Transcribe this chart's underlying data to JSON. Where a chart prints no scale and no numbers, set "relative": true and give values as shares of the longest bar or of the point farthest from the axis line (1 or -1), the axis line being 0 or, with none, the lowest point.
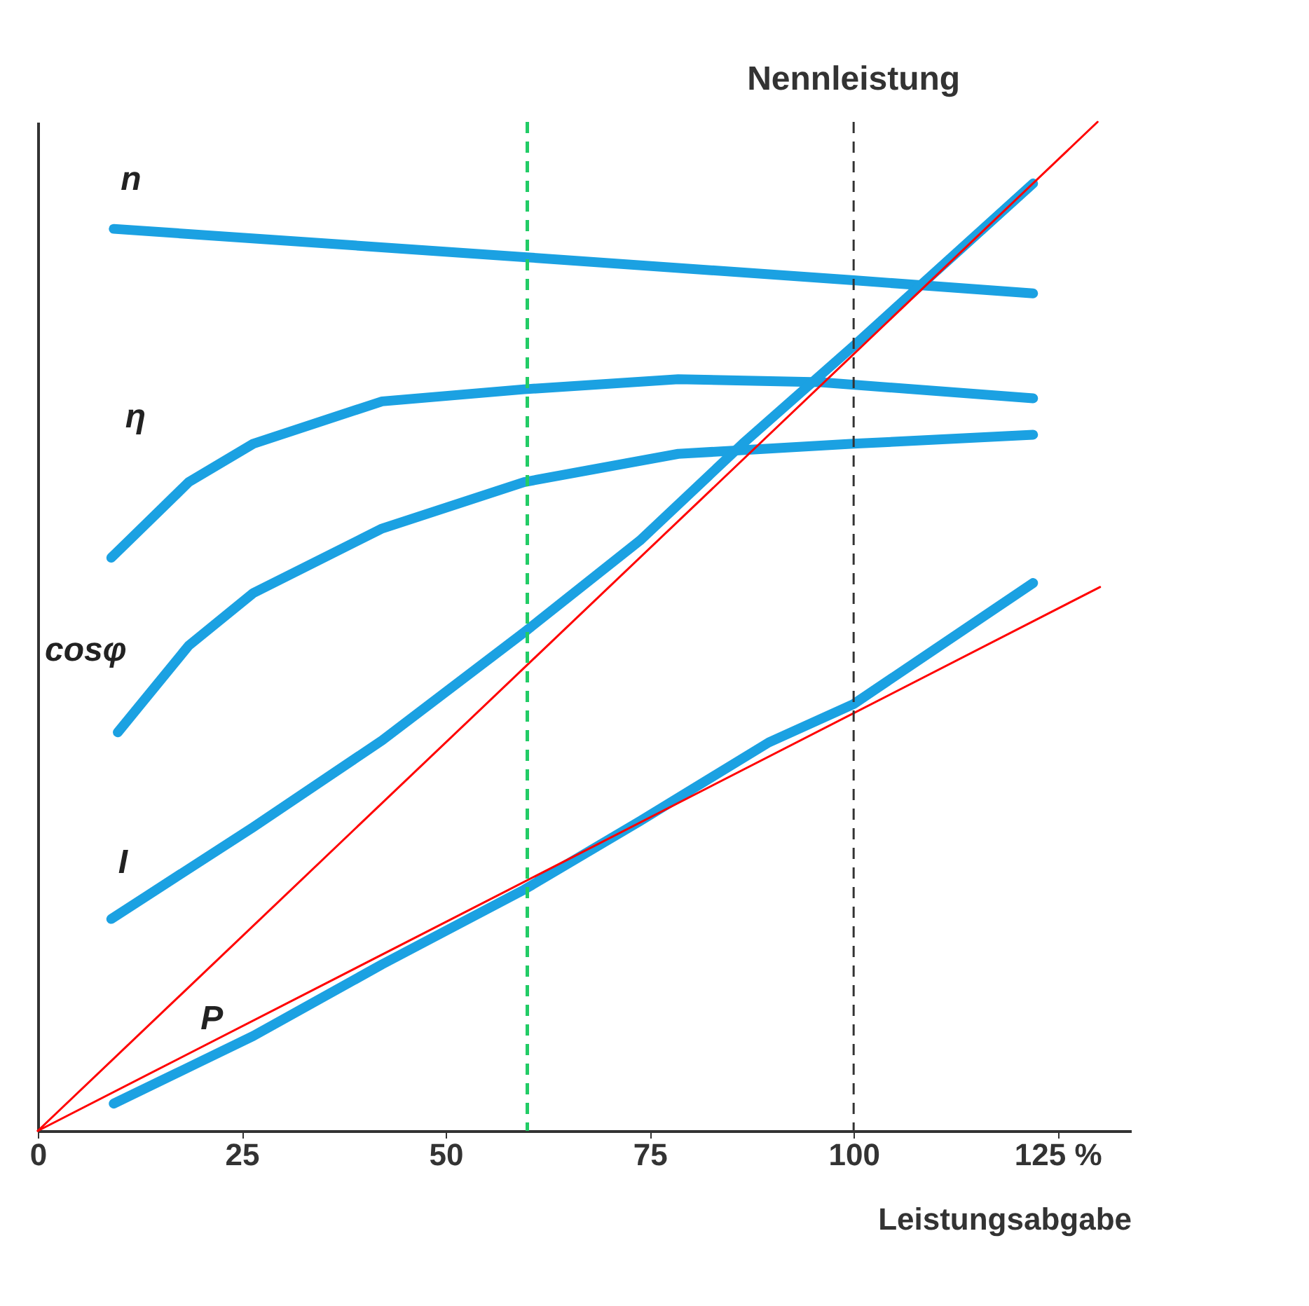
{
  "chart_data": {
    "type": "line",
    "relative": true,
    "xlabel": "Leistungsabgabe",
    "xlim": [
      0,
      134
    ],
    "xticks": [
      0,
      25,
      50,
      75,
      100,
      {
        "value": 125,
        "label": "125 %"
      }
    ],
    "grid": false,
    "marker": "none",
    "line_style": "solid",
    "series": [
      {
        "name": "n",
        "color": "#1ba1e2",
        "x": [
          9.3,
          59.6,
          100,
          122
        ],
        "values": [
          0.894,
          0.866,
          0.843,
          0.83
        ]
      },
      {
        "name": "η",
        "color": "#1ba1e2",
        "x": [
          9.0,
          18.5,
          26.4,
          42.2,
          59.6,
          78.5,
          95.9,
          122
        ],
        "values": [
          0.568,
          0.643,
          0.681,
          0.723,
          0.735,
          0.745,
          0.742,
          0.726
        ]
      },
      {
        "name": "cosφ",
        "color": "#1ba1e2",
        "x": [
          9.8,
          18.5,
          26.4,
          42.2,
          59.6,
          78.5,
          100,
          122
        ],
        "values": [
          0.395,
          0.481,
          0.533,
          0.597,
          0.643,
          0.671,
          0.681,
          0.69
        ]
      },
      {
        "name": "I",
        "color": "#1ba1e2",
        "x": [
          9.0,
          26.4,
          42.2,
          59.6,
          73.8,
          86.4,
          100,
          122
        ],
        "values": [
          0.21,
          0.301,
          0.387,
          0.494,
          0.585,
          0.681,
          0.778,
          0.939
        ]
      },
      {
        "name": "P",
        "color": "#1ba1e2",
        "x": [
          9.3,
          26.4,
          42.2,
          59.6,
          73.8,
          89.6,
          100,
          122
        ],
        "values": [
          0.027,
          0.094,
          0.165,
          0.239,
          0.307,
          0.385,
          0.423,
          0.543
        ]
      },
      {
        "color": "#ff0000",
        "x": [
          0,
          129.9
        ],
        "values": [
          0,
          1.0
        ]
      },
      {
        "color": "#ff0000",
        "x": [
          0,
          130.2
        ],
        "values": [
          0,
          0.539
        ]
      }
    ],
    "ref_lines": [
      {
        "axis": "x",
        "value": 60,
        "color": "#22cc66",
        "line_style": "dashed"
      },
      {
        "axis": "x",
        "value": 100,
        "label": "Nennleistung",
        "color": "#333333",
        "line_style": "dashed"
      }
    ]
  }
}
